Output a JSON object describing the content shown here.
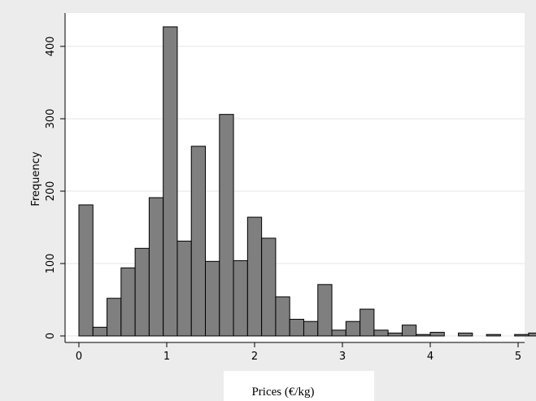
{
  "chart_data": {
    "type": "bar",
    "title": "",
    "xlabel": "Prices (€/kg)",
    "ylabel": "Frequency",
    "xlim": [
      -0.2,
      5.05
    ],
    "ylim": [
      0,
      440
    ],
    "xticks": [
      0,
      1,
      2,
      3,
      4,
      5
    ],
    "yticks": [
      0,
      100,
      200,
      300,
      400
    ],
    "grid": true,
    "legend": "none",
    "bin_width": 0.16,
    "bar_color": "#7f7f7f",
    "edge_color": "#000000",
    "background_color": "#ececec",
    "plot_background": "#ffffff",
    "grid_color": "#e6e6e6",
    "bins": [
      {
        "x": 0.0,
        "count": 181
      },
      {
        "x": 0.16,
        "count": 12
      },
      {
        "x": 0.32,
        "count": 52
      },
      {
        "x": 0.48,
        "count": 94
      },
      {
        "x": 0.64,
        "count": 121
      },
      {
        "x": 0.8,
        "count": 191
      },
      {
        "x": 0.96,
        "count": 427
      },
      {
        "x": 1.12,
        "count": 131
      },
      {
        "x": 1.28,
        "count": 262
      },
      {
        "x": 1.44,
        "count": 103
      },
      {
        "x": 1.6,
        "count": 306
      },
      {
        "x": 1.76,
        "count": 104
      },
      {
        "x": 1.92,
        "count": 164
      },
      {
        "x": 2.08,
        "count": 135
      },
      {
        "x": 2.24,
        "count": 54
      },
      {
        "x": 2.4,
        "count": 23
      },
      {
        "x": 2.56,
        "count": 20
      },
      {
        "x": 2.72,
        "count": 71
      },
      {
        "x": 2.88,
        "count": 8
      },
      {
        "x": 3.04,
        "count": 20
      },
      {
        "x": 3.2,
        "count": 37
      },
      {
        "x": 3.36,
        "count": 8
      },
      {
        "x": 3.52,
        "count": 4
      },
      {
        "x": 3.68,
        "count": 15
      },
      {
        "x": 3.84,
        "count": 2
      },
      {
        "x": 4.0,
        "count": 5
      },
      {
        "x": 4.16,
        "count": 0
      },
      {
        "x": 4.32,
        "count": 4
      },
      {
        "x": 4.48,
        "count": 0
      },
      {
        "x": 4.64,
        "count": 2
      },
      {
        "x": 4.8,
        "count": 0
      },
      {
        "x": 4.96,
        "count": 2
      },
      {
        "x": 5.12,
        "count": 4
      }
    ]
  }
}
